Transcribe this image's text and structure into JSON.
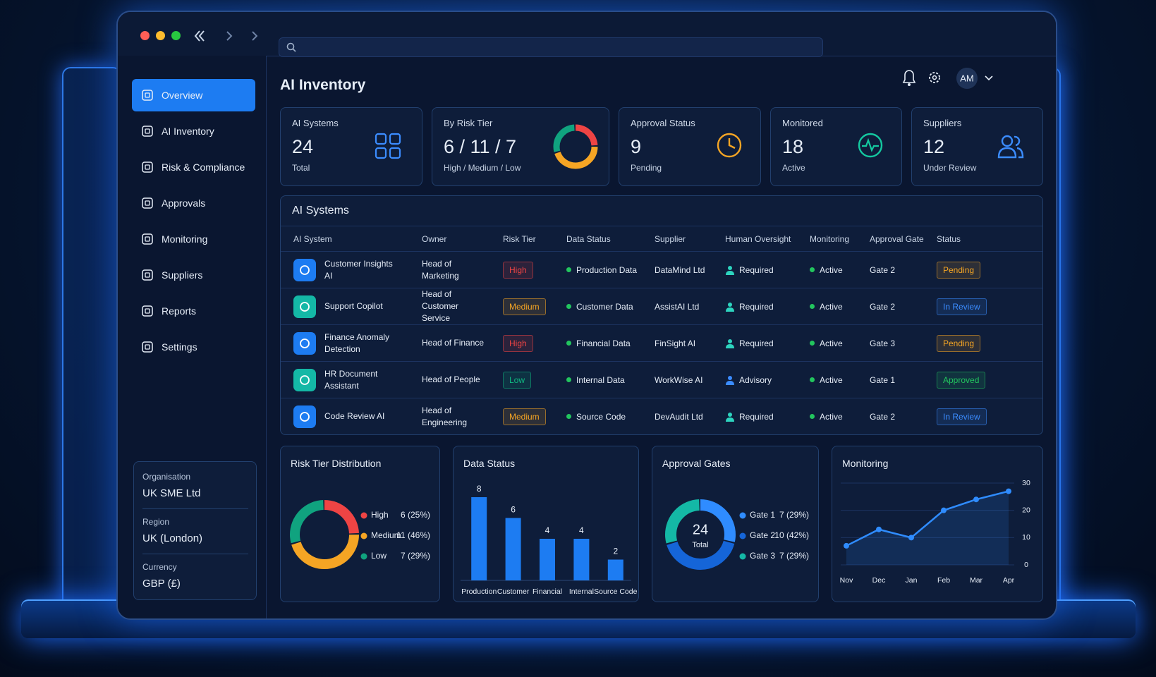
{
  "header": {
    "title": "AI Inventory",
    "avatar": "AM"
  },
  "sidebar": {
    "nav": [
      "Overview",
      "AI Inventory",
      "Risk & Compliance",
      "Approvals",
      "Monitoring",
      "Suppliers",
      "Reports",
      "Settings"
    ],
    "active": 0,
    "info": [
      {
        "label": "Organisation",
        "value": "UK SME Ltd"
      },
      {
        "label": "Region",
        "value": "UK (London)"
      },
      {
        "label": "Currency",
        "value": "GBP (£)"
      }
    ]
  },
  "kpis": [
    {
      "title": "AI Systems",
      "value": 24,
      "sub": "Total",
      "color": "#3b8cff"
    },
    {
      "title": "By Risk Tier",
      "value": "6 / 11 / 7",
      "sub": "High / Medium / Low"
    },
    {
      "title": "Approval Status",
      "value": 9,
      "sub": "Pending",
      "color": "#f5a524"
    },
    {
      "title": "Monitored",
      "value": 18,
      "sub": "Active",
      "color": "#14c9a0"
    },
    {
      "title": "Suppliers",
      "value": 12,
      "sub": "Under Review",
      "color": "#3b8cff"
    }
  ],
  "table": {
    "title": "AI Systems",
    "columns": [
      "AI System",
      "Owner",
      "Risk Tier",
      "Data Status",
      "Supplier",
      "Human Oversight",
      "Monitoring",
      "Approval Gate",
      "Status"
    ],
    "rows": [
      {
        "system": "Customer Insights AI",
        "owner": "Head of Marketing",
        "risk_tier": "High",
        "risk_color": "#ef4444",
        "data_status": "Production Data",
        "supplier": "DataMind Ltd",
        "oversight": "Required",
        "oversight_color": "#2dd4bf",
        "monitoring": "Active",
        "gate": "Gate 2",
        "status": "Pending",
        "status_color": "#f5a524",
        "icon_color": "#1d7cf2"
      },
      {
        "system": "Support Copilot",
        "owner": "Head of Customer Service",
        "risk_tier": "Medium",
        "risk_color": "#f5a524",
        "data_status": "Customer Data",
        "supplier": "AssistAI Ltd",
        "oversight": "Required",
        "oversight_color": "#2dd4bf",
        "monitoring": "Active",
        "gate": "Gate 2",
        "status": "In Review",
        "status_color": "#3b8cff",
        "icon_color": "#14b8a6"
      },
      {
        "system": "Finance Anomaly Detection",
        "owner": "Head of Finance",
        "risk_tier": "High",
        "risk_color": "#ef4444",
        "data_status": "Financial Data",
        "supplier": "FinSight AI",
        "oversight": "Required",
        "oversight_color": "#2dd4bf",
        "monitoring": "Active",
        "gate": "Gate 3",
        "status": "Pending",
        "status_color": "#f5a524",
        "icon_color": "#1d7cf2"
      },
      {
        "system": "HR Document Assistant",
        "owner": "Head of People",
        "risk_tier": "Low",
        "risk_color": "#10b981",
        "data_status": "Internal Data",
        "supplier": "WorkWise AI",
        "oversight": "Advisory",
        "oversight_color": "#3b8cff",
        "monitoring": "Active",
        "gate": "Gate 1",
        "status": "Approved",
        "status_color": "#22c55e",
        "icon_color": "#14b8a6"
      },
      {
        "system": "Code Review AI",
        "owner": "Head of Engineering",
        "risk_tier": "Medium",
        "risk_color": "#f5a524",
        "data_status": "Source Code",
        "supplier": "DevAudit Ltd",
        "oversight": "Required",
        "oversight_color": "#2dd4bf",
        "monitoring": "Active",
        "gate": "Gate 2",
        "status": "In Review",
        "status_color": "#3b8cff",
        "icon_color": "#1d7cf2"
      }
    ]
  },
  "chart_data": [
    {
      "type": "donut",
      "title": "Risk Tier Distribution",
      "categories": [
        "High",
        "Medium",
        "Low"
      ],
      "values": [
        6,
        11,
        7
      ],
      "value_labels": [
        "6 (25%)",
        "11 (46%)",
        "7 (29%)"
      ],
      "colors": [
        "#ef4444",
        "#f5a524",
        "#10a37f"
      ]
    },
    {
      "type": "bar",
      "title": "Data Status",
      "categories": [
        "Production",
        "Customer",
        "Financial",
        "Internal",
        "Source Code"
      ],
      "values": [
        8,
        6,
        4,
        4,
        2
      ],
      "color": "#1d7cf2"
    },
    {
      "type": "donut",
      "title": "Approval Gates",
      "center_value": 24,
      "center_label": "Total",
      "categories": [
        "Gate 1",
        "Gate 2",
        "Gate 3"
      ],
      "values": [
        7,
        10,
        7
      ],
      "value_labels": [
        "7 (29%)",
        "10 (42%)",
        "7 (29%)"
      ],
      "colors": [
        "#2f8cff",
        "#1565d8",
        "#14b8a6"
      ]
    },
    {
      "type": "line",
      "title": "Monitoring",
      "categories": [
        "Nov",
        "Dec",
        "Jan",
        "Feb",
        "Mar",
        "Apr"
      ],
      "values": [
        7,
        13,
        10,
        20,
        24,
        27
      ],
      "ylim": [
        0,
        30
      ],
      "yticks": [
        0,
        10,
        20,
        30
      ],
      "grid": true,
      "color": "#2f8cff"
    }
  ]
}
